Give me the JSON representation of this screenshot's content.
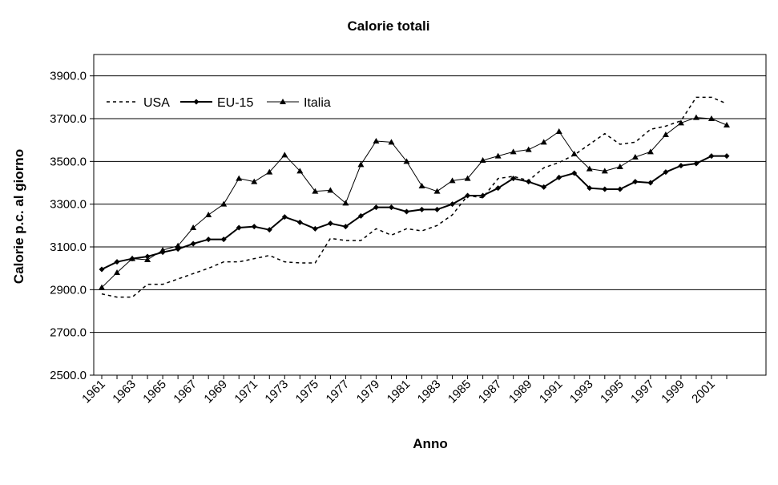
{
  "chart_data": {
    "type": "line",
    "title": "Calorie totali",
    "xlabel": "Anno",
    "ylabel": "Calorie p.c. al giorno",
    "ylim": [
      2500,
      4000
    ],
    "yticks": [
      "2500.0",
      "2700.0",
      "2900.0",
      "3100.0",
      "3300.0",
      "3500.0",
      "3700.0",
      "3900.0"
    ],
    "xtick_labels": [
      "1961",
      "1963",
      "1965",
      "1967",
      "1969",
      "1971",
      "1973",
      "1975",
      "1977",
      "1979",
      "1981",
      "1983",
      "1985",
      "1987",
      "1989",
      "1991",
      "1993",
      "1995",
      "1997",
      "1999",
      "2001"
    ],
    "grid": "horizontal",
    "legend_position": "top-left",
    "x": [
      1961,
      1962,
      1963,
      1964,
      1965,
      1966,
      1967,
      1968,
      1969,
      1970,
      1971,
      1972,
      1973,
      1974,
      1975,
      1976,
      1977,
      1978,
      1979,
      1980,
      1981,
      1982,
      1983,
      1984,
      1985,
      1986,
      1987,
      1988,
      1989,
      1990,
      1991,
      1992,
      1993,
      1994,
      1995,
      1996,
      1997,
      1998,
      1999,
      2000,
      2001,
      2002
    ],
    "series": [
      {
        "name": "USA",
        "style": "dashed",
        "color": "#000000",
        "values": [
          2880,
          2865,
          2865,
          2925,
          2925,
          2950,
          2975,
          3000,
          3030,
          3030,
          3045,
          3060,
          3030,
          3025,
          3025,
          3140,
          3130,
          3130,
          3185,
          3155,
          3185,
          3175,
          3200,
          3250,
          3340,
          3330,
          3420,
          3430,
          3410,
          3470,
          3495,
          3530,
          3580,
          3630,
          3580,
          3590,
          3650,
          3665,
          3690,
          3800,
          3800,
          3770
        ]
      },
      {
        "name": "EU-15",
        "style": "solid-diamond",
        "color": "#000000",
        "values": [
          2995,
          3030,
          3045,
          3055,
          3075,
          3090,
          3115,
          3135,
          3135,
          3190,
          3195,
          3180,
          3240,
          3215,
          3185,
          3210,
          3195,
          3245,
          3285,
          3285,
          3265,
          3275,
          3275,
          3300,
          3340,
          3340,
          3375,
          3420,
          3405,
          3380,
          3425,
          3445,
          3375,
          3370,
          3370,
          3405,
          3400,
          3450,
          3480,
          3490,
          3525,
          3525
        ]
      },
      {
        "name": "Italia",
        "style": "thin-triangle",
        "color": "#000000",
        "values": [
          2910,
          2980,
          3045,
          3040,
          3085,
          3105,
          3190,
          3250,
          3300,
          3420,
          3405,
          3450,
          3530,
          3455,
          3360,
          3365,
          3305,
          3485,
          3595,
          3590,
          3500,
          3385,
          3360,
          3410,
          3420,
          3505,
          3525,
          3545,
          3555,
          3590,
          3640,
          3535,
          3465,
          3455,
          3475,
          3520,
          3545,
          3625,
          3680,
          3705,
          3700,
          3670
        ]
      }
    ]
  }
}
